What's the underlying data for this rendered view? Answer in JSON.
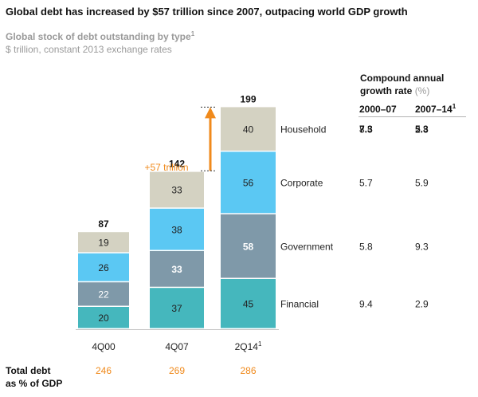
{
  "title": "Global debt has increased by $57 trillion since 2007, outpacing world GDP growth",
  "subtitle": "Global stock of debt outstanding by type",
  "subtitle_sup": "1",
  "unit": "$ trillion, constant 2013 exchange rates",
  "cagr_header_line1": "Compound annual",
  "cagr_header_line2": "growth rate",
  "cagr_header_pct": "(%)",
  "cagr_columns": [
    {
      "label": "2000–07",
      "sup": "",
      "total": "7.3"
    },
    {
      "label": "2007–14",
      "sup": "1",
      "total": "5.3"
    }
  ],
  "increase_annotation": "+57 trillion",
  "gdp_label_line1": "Total debt",
  "gdp_label_line2": "as % of GDP",
  "colors": {
    "Household": "#d4d2c2",
    "Corporate": "#5bc8f3",
    "Government": "#7f99a9",
    "Financial": "#45b7bd",
    "arrow": "#f08a1c",
    "gdp": "#f08a1c"
  },
  "chart_data": {
    "type": "bar",
    "stacked": true,
    "categories": [
      "4Q00",
      "4Q07",
      "2Q14"
    ],
    "category_sups": [
      "",
      "",
      "1"
    ],
    "series": [
      {
        "name": "Financial",
        "values": [
          20,
          37,
          45
        ],
        "cagr": [
          "9.4",
          "2.9"
        ]
      },
      {
        "name": "Government",
        "values": [
          22,
          33,
          58
        ],
        "cagr": [
          "5.8",
          "9.3"
        ]
      },
      {
        "name": "Corporate",
        "values": [
          26,
          38,
          56
        ],
        "cagr": [
          "5.7",
          "5.9"
        ]
      },
      {
        "name": "Household",
        "values": [
          19,
          33,
          40
        ],
        "cagr": [
          "8.5",
          "2.8"
        ]
      }
    ],
    "totals": [
      87,
      142,
      199
    ],
    "gdp_percent": [
      246,
      269,
      286
    ]
  }
}
